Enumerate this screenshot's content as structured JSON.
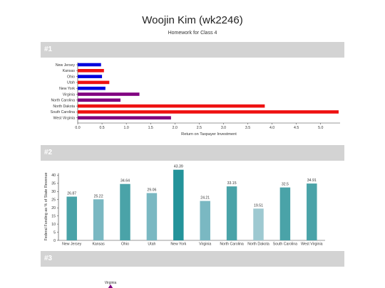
{
  "header": {
    "title": "Woojin Kim (wk2246)",
    "subtitle": "Homework for Class 4"
  },
  "sections": {
    "s1": "#1",
    "s2": "#2",
    "s3": "#3"
  },
  "chart_data": [
    {
      "type": "bar",
      "orientation": "horizontal",
      "categories": [
        "New Jersey",
        "Kansas",
        "Ohio",
        "Utah",
        "New York",
        "Virginia",
        "North Carolina",
        "North Dakota",
        "South Carolina",
        "West Virginia"
      ],
      "values": [
        0.48,
        0.54,
        0.5,
        0.65,
        0.57,
        1.27,
        0.88,
        3.85,
        5.37,
        1.92
      ],
      "bar_colors": [
        "#0000dd",
        "#ee1111",
        "#0000dd",
        "#ee1111",
        "#0000dd",
        "#800080",
        "#800080",
        "#ee1111",
        "#ee1111",
        "#800080"
      ],
      "xlabel": "Return on Taxpayer Investment",
      "xlim": [
        0,
        5.4
      ],
      "xticks": [
        "0.0",
        "0.5",
        "1.0",
        "1.5",
        "2.0",
        "2.5",
        "3.0",
        "3.5",
        "4.0",
        "4.5",
        "5.0"
      ]
    },
    {
      "type": "bar",
      "categories": [
        "New Jersey",
        "Kansas",
        "Ohio",
        "Utah",
        "New York",
        "Virginia",
        "North Carolina",
        "North Dakota",
        "South Carolina",
        "West Virginia"
      ],
      "values": [
        26.87,
        25.22,
        34.64,
        29.06,
        43.39,
        24.21,
        33.15,
        19.51,
        32.5,
        34.91
      ],
      "value_labels": [
        "26.87",
        "25.22",
        "34.64",
        "29.06",
        "43.39",
        "24.21",
        "33.15",
        "19.51",
        "32.5",
        "34.91"
      ],
      "bar_colors": [
        "#4aa3a8",
        "#7ab8c2",
        "#4aa3a8",
        "#7ab8c2",
        "#23939a",
        "#7ab8c2",
        "#4aa3a8",
        "#9ec9d1",
        "#4aa3a8",
        "#4aa3a8"
      ],
      "ylabel": "Federal Funding as % of State Revenue",
      "ylim": [
        0,
        45
      ],
      "yticks": [
        "0",
        "5",
        "10",
        "15",
        "20",
        "25",
        "30",
        "35",
        "40"
      ]
    }
  ],
  "section3": {
    "label": "Virginia",
    "marker_color": "#800080"
  }
}
